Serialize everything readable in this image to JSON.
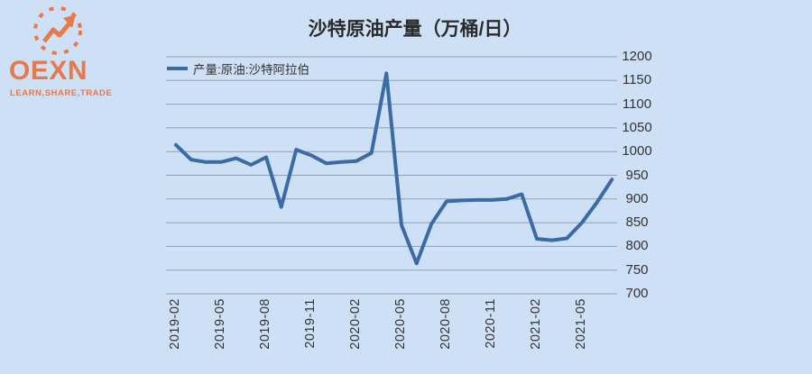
{
  "page": {
    "background_color": "#CEE0F5"
  },
  "logo": {
    "brand": "OEXN",
    "tagline": "LEARN,SHARE,TRADE",
    "color": "#E8794B",
    "icon": "trend-arrow-circle-icon"
  },
  "chart_data": {
    "type": "line",
    "title": "沙特原油产量（万桶/日）",
    "categories": [
      "2019-02",
      "2019-03",
      "2019-04",
      "2019-05",
      "2019-06",
      "2019-07",
      "2019-08",
      "2019-09",
      "2019-10",
      "2019-11",
      "2019-12",
      "2020-01",
      "2020-02",
      "2020-03",
      "2020-04",
      "2020-05",
      "2020-06",
      "2020-07",
      "2020-08",
      "2020-09",
      "2020-10",
      "2020-11",
      "2020-12",
      "2021-01",
      "2021-02",
      "2021-03",
      "2021-04",
      "2021-05",
      "2021-06",
      "2021-07"
    ],
    "series": [
      {
        "name": "产量:原油:沙特阿拉伯",
        "values": [
          1014,
          983,
          978,
          978,
          986,
          972,
          988,
          883,
          1004,
          992,
          975,
          978,
          980,
          997,
          1165,
          845,
          764,
          848,
          895,
          897,
          898,
          898,
          900,
          910,
          816,
          813,
          817,
          850,
          893,
          941
        ]
      }
    ],
    "xlabel": "",
    "ylabel": "",
    "ylim": [
      700,
      1200
    ],
    "ytick_step": 50,
    "y_ticks": [
      700,
      750,
      800,
      850,
      900,
      950,
      1000,
      1050,
      1100,
      1150,
      1200
    ],
    "x_tick_every": 3,
    "x_ticks_shown": [
      "2019-02",
      "2019-05",
      "2019-08",
      "2019-11",
      "2020-02",
      "2020-05",
      "2020-08",
      "2020-11",
      "2021-02",
      "2021-05"
    ],
    "grid": "horizontal",
    "legend_position": "top-left",
    "yaxis_side": "right",
    "line_color": "#3A6BA6",
    "grid_color": "#93A0AE",
    "text_color": "#333333"
  }
}
